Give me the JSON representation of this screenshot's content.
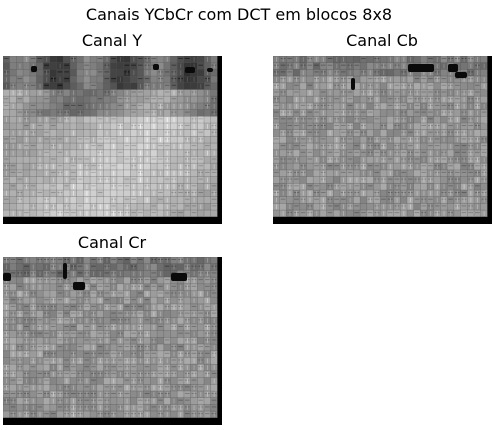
{
  "figure": {
    "title": "Canais YCbCr com DCT em blocos 8x8"
  },
  "panels": [
    {
      "title": "Canal Y"
    },
    {
      "title": "Canal Cb"
    },
    {
      "title": "Canal Cr"
    }
  ],
  "colors": {
    "background": "#ffffff",
    "text": "#000000",
    "gray_base": "#9a9a9a",
    "border_black": "#000000"
  }
}
